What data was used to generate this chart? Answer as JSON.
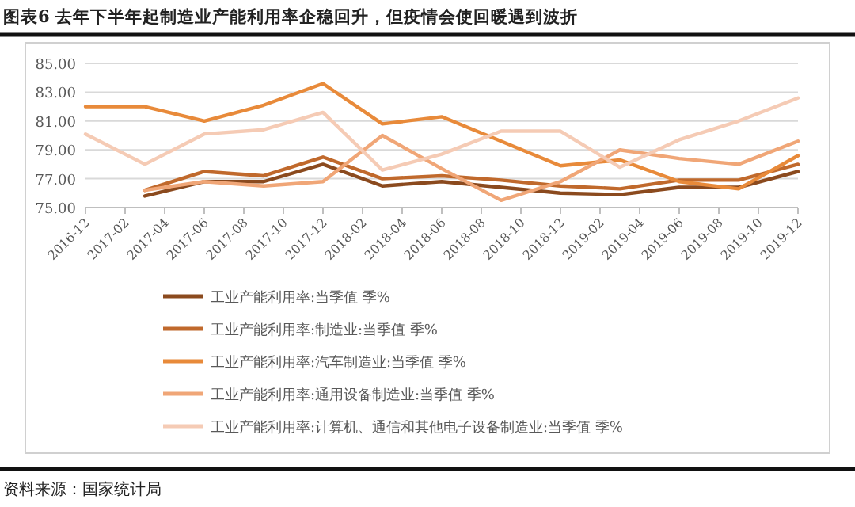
{
  "chart_data": {
    "type": "line",
    "title": "图表6 去年下半年起制造业产能利用率企稳回升，但疫情会使回暖遇到波折",
    "annotations": [
      "资料来源：国家统计局"
    ],
    "x": [
      "2016-12",
      "2017-03",
      "2017-06",
      "2017-09",
      "2017-12",
      "2018-03",
      "2018-06",
      "2018-09",
      "2018-12",
      "2019-03",
      "2019-06",
      "2019-09",
      "2019-12"
    ],
    "xlim": [
      "2016-12",
      "2019-12"
    ],
    "xticks": [
      "2016-12",
      "2017-02",
      "2017-04",
      "2017-06",
      "2017-08",
      "2017-10",
      "2017-12",
      "2018-02",
      "2018-04",
      "2018-06",
      "2018-08",
      "2018-10",
      "2018-12",
      "2019-02",
      "2019-04",
      "2019-06",
      "2019-08",
      "2019-10",
      "2019-12"
    ],
    "ylim": [
      75,
      85
    ],
    "yticks": [
      {
        "value": 75,
        "label": "75.00"
      },
      {
        "value": 77,
        "label": "77.00"
      },
      {
        "value": 79,
        "label": "79.00"
      },
      {
        "value": 81,
        "label": "81.00"
      },
      {
        "value": 83,
        "label": "83.00"
      },
      {
        "value": 85,
        "label": "85.00"
      }
    ],
    "grid": "y",
    "legend": "bottom",
    "series": [
      {
        "name": "工业产能利用率:当季值 季%",
        "color": "#8b4a1e",
        "values": [
          null,
          75.8,
          76.8,
          76.8,
          78.0,
          76.5,
          76.8,
          76.4,
          76.0,
          75.9,
          76.4,
          76.4,
          77.5
        ]
      },
      {
        "name": "工业产能利用率:制造业:当季值 季%",
        "color": "#c0692c",
        "values": [
          null,
          76.2,
          77.5,
          77.2,
          78.5,
          77.0,
          77.2,
          76.9,
          76.5,
          76.3,
          76.9,
          76.9,
          78.0
        ]
      },
      {
        "name": "工业产能利用率:汽车制造业:当季值 季%",
        "color": "#e88a3a",
        "values": [
          82.0,
          82.0,
          81.0,
          82.1,
          83.6,
          80.8,
          81.3,
          79.6,
          77.9,
          78.3,
          76.8,
          76.3,
          78.6
        ]
      },
      {
        "name": "工业产能利用率:通用设备制造业:当季值 季%",
        "color": "#f0a677",
        "values": [
          null,
          76.2,
          76.8,
          76.5,
          76.8,
          80.0,
          77.7,
          75.5,
          76.8,
          79.0,
          78.4,
          78.0,
          79.6
        ]
      },
      {
        "name": "工业产能利用率:计算机、通信和其他电子设备制造业:当季值 季%",
        "color": "#f5cbb5",
        "values": [
          80.1,
          78.0,
          80.1,
          80.4,
          81.6,
          77.6,
          78.7,
          80.3,
          80.3,
          77.8,
          79.7,
          81.0,
          82.6
        ]
      }
    ]
  }
}
